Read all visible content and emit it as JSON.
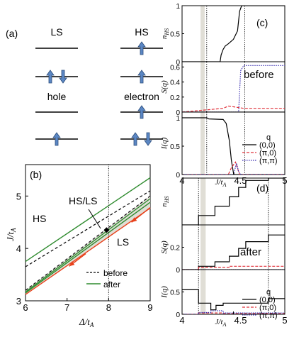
{
  "chart_data": [
    {
      "panel": "(a)",
      "type": "diagram",
      "states": [
        {
          "name": "LS",
          "upper": [],
          "lower": [
            "up",
            "down"
          ]
        },
        {
          "name": "HS",
          "upper": [
            "up"
          ],
          "lower": [
            "up"
          ]
        },
        {
          "name": "hole",
          "upper": [],
          "lower": [
            "up"
          ]
        },
        {
          "name": "electron",
          "upper": [
            "up"
          ],
          "lower": [
            "up",
            "down"
          ]
        }
      ],
      "colors": {
        "arrow": "#5b87c4",
        "arrow_edge": "#2b4c7a"
      }
    },
    {
      "panel": "(b)",
      "type": "line",
      "xlabel": "Δ/t",
      "xlabel_sub": "A",
      "ylabel": "J/t",
      "ylabel_sub": "A",
      "xlim": [
        6,
        9
      ],
      "ylim": [
        3,
        5.6
      ],
      "xticks": [
        "6",
        "7",
        "8",
        "9"
      ],
      "yticks": [
        "3",
        "4",
        "5"
      ],
      "region_labels": [
        "HS",
        "HS/LS",
        "LS"
      ],
      "legend": [
        "before",
        "after"
      ],
      "legend_placement": "bottom-right",
      "vertical_line_x": 8.0,
      "series": [
        {
          "legend_index": 0,
          "style": "dashed",
          "color": "#000000",
          "x": [
            6,
            9
          ],
          "y": [
            3.65,
            5.1
          ]
        },
        {
          "legend_index": 0,
          "style": "dashed",
          "color": "#000000",
          "x": [
            6,
            9
          ],
          "y": [
            3.2,
            5.0
          ]
        },
        {
          "legend_index": 1,
          "style": "solid",
          "color": "#2e8b2e",
          "x": [
            6,
            9
          ],
          "y": [
            3.75,
            5.35
          ]
        },
        {
          "legend_index": 1,
          "style": "solid",
          "color": "#2e8b2e",
          "x": [
            6,
            9
          ],
          "y": [
            3.17,
            4.95
          ]
        },
        {
          "legend_index": 1,
          "style": "solid",
          "color": "#2e8b2e",
          "x": [
            6,
            9
          ],
          "y": [
            3.15,
            4.88
          ]
        },
        {
          "legend_index": -1,
          "style": "solid",
          "color": "#e8401a",
          "x": [
            6,
            9
          ],
          "y": [
            3.12,
            4.77
          ]
        }
      ],
      "band": {
        "x": [
          6,
          9
        ],
        "y_low": [
          3.12,
          4.77
        ],
        "y_high": [
          3.2,
          5.0
        ],
        "color": "#e0ded6"
      },
      "arrows": [
        {
          "x1": 9.0,
          "y1": 4.78,
          "x2": 8.55,
          "y2": 4.5
        },
        {
          "x1": 7.45,
          "y1": 3.9,
          "x2": 7.05,
          "y2": 3.66
        }
      ],
      "marker": {
        "x": 7.95,
        "y": 4.35
      }
    },
    {
      "panel": "(c)",
      "type": "line",
      "annotation": "before",
      "xlim": [
        4,
        5
      ],
      "xticks": [
        "4",
        "4.5",
        "5"
      ],
      "xlabel": "J/t",
      "xlabel_sub": "A",
      "shaded_x": [
        4.18,
        4.22
      ],
      "dotted_x": [
        4.24,
        4.61
      ],
      "subplots": [
        {
          "ylabel": "n",
          "ylabel_sub": "HS",
          "ylim": [
            0,
            1
          ],
          "yticks": [
            "0",
            "0.5",
            "1"
          ],
          "series": [
            {
              "color": "#000000",
              "style": "solid",
              "x": [
                4.0,
                4.24,
                4.25,
                4.37,
                4.38,
                4.4,
                4.42,
                4.45,
                4.5,
                4.54,
                4.56,
                4.58,
                5.0
              ],
              "y": [
                0,
                0,
                0,
                0,
                0.12,
                0.22,
                0.28,
                0.32,
                0.4,
                0.55,
                0.9,
                1.0,
                1.0
              ]
            }
          ]
        },
        {
          "ylabel": "S(q)",
          "ylim": [
            0,
            0.67
          ],
          "yticks": [
            "0",
            "0.2",
            "0.4",
            "0.6"
          ],
          "series": [
            {
              "color": "#000000",
              "style": "solid",
              "x": [
                4.0,
                5.0
              ],
              "y": [
                0.0,
                0.0
              ]
            },
            {
              "color": "#e0303a",
              "style": "dashed",
              "x": [
                4.0,
                4.4,
                4.45,
                4.55,
                4.6,
                5.0
              ],
              "y": [
                0.0,
                0.05,
                0.08,
                0.06,
                0.05,
                0.05
              ]
            },
            {
              "color": "#3a2fb0",
              "style": "dotted",
              "x": [
                4.0,
                4.55,
                4.57,
                4.6,
                5.0
              ],
              "y": [
                0.0,
                0.0,
                0.55,
                0.62,
                0.62
              ]
            }
          ]
        },
        {
          "ylabel": "I(q)",
          "ylim": [
            0,
            1.1
          ],
          "yticks": [
            "0",
            "0.5",
            "1"
          ],
          "series": [
            {
              "color": "#000000",
              "style": "solid",
              "x": [
                4.0,
                4.24,
                4.26,
                4.4,
                4.43,
                4.46,
                4.48,
                4.5,
                4.51,
                4.52,
                4.55,
                5.0
              ],
              "y": [
                1.0,
                1.0,
                0.98,
                0.97,
                0.9,
                0.6,
                0.25,
                0.03,
                0.0,
                0.0,
                0.0,
                0.0
              ]
            },
            {
              "color": "#e0303a",
              "style": "dashed",
              "x": [
                4.0,
                4.45,
                4.48,
                4.52,
                4.56,
                5.0
              ],
              "y": [
                0.0,
                0.0,
                0.12,
                0.22,
                0.0,
                0.0
              ]
            },
            {
              "color": "#3a2fb0",
              "style": "dotted",
              "x": [
                4.0,
                4.5,
                4.53,
                4.55,
                4.57,
                5.0
              ],
              "y": [
                0.0,
                0.0,
                0.2,
                0.05,
                0.0,
                0.0
              ]
            }
          ]
        }
      ],
      "legend": {
        "title": "q",
        "entries": [
          "(0,0)",
          "(π,0)",
          "(π,π)"
        ]
      }
    },
    {
      "panel": "(d)",
      "type": "line",
      "annotation": "after",
      "xlim": [
        4,
        5
      ],
      "xticks": [
        "4",
        "4.5",
        "5"
      ],
      "xlabel": "J/t",
      "xlabel_sub": "A",
      "shaded_x": [
        4.18,
        4.23
      ],
      "dotted_x": [
        4.16,
        4.84
      ],
      "subplots": [
        {
          "ylabel": "n",
          "ylabel_sub": "HS",
          "ylim": [
            0,
            1
          ],
          "yticks": [],
          "series": [
            {
              "color": "#000000",
              "style": "solid",
              "x": [
                4.0,
                4.16,
                4.16,
                4.32,
                4.32,
                4.46,
                4.46,
                4.55,
                4.55,
                4.62,
                4.62,
                4.84,
                4.84,
                5.0
              ],
              "y": [
                0,
                0,
                0.2,
                0.2,
                0.4,
                0.4,
                0.6,
                0.6,
                0.8,
                0.8,
                0.95,
                0.95,
                1.0,
                1.0
              ]
            }
          ]
        },
        {
          "ylabel": "S(q)",
          "ylim": [
            0,
            0.4
          ],
          "yticks": [
            "0",
            "0.2"
          ],
          "series": [
            {
              "color": "#000000",
              "style": "solid",
              "x": [
                4.0,
                4.16,
                4.16,
                4.32,
                4.32,
                4.46,
                4.46,
                4.55,
                4.55,
                4.62,
                4.62,
                4.84,
                4.84,
                5.0
              ],
              "y": [
                0.0,
                0.0,
                0.03,
                0.03,
                0.07,
                0.07,
                0.12,
                0.12,
                0.19,
                0.19,
                0.25,
                0.25,
                0.31,
                0.31
              ]
            },
            {
              "color": "#e0303a",
              "style": "dashed",
              "x": [
                4.0,
                4.16,
                4.16,
                4.46,
                4.46,
                5.0
              ],
              "y": [
                0.0,
                0.0,
                0.02,
                0.02,
                0.03,
                0.03
              ]
            },
            {
              "color": "#3a2fb0",
              "style": "dotted",
              "x": [
                4.0,
                5.0
              ],
              "y": [
                0.0,
                0.0
              ]
            }
          ]
        },
        {
          "ylabel": "I(q)",
          "ylim": [
            0,
            1.0
          ],
          "yticks": [
            "0",
            "0.5"
          ],
          "series": [
            {
              "color": "#000000",
              "style": "solid",
              "x": [
                4.0,
                4.16,
                4.16,
                4.28,
                4.28,
                4.33,
                4.33,
                4.4,
                4.4,
                4.84,
                4.84,
                5.0
              ],
              "y": [
                0.55,
                0.55,
                0.25,
                0.25,
                0.1,
                0.1,
                0.2,
                0.2,
                0.25,
                0.25,
                0.35,
                0.35
              ]
            },
            {
              "color": "#e0303a",
              "style": "dashed",
              "x": [
                4.0,
                4.16,
                4.16,
                4.4,
                4.4,
                5.0
              ],
              "y": [
                0.0,
                0.0,
                0.03,
                0.03,
                0.02,
                0.02
              ]
            },
            {
              "color": "#3a2fb0",
              "style": "dotted",
              "x": [
                4.0,
                4.16,
                4.16,
                4.28,
                4.28,
                4.4,
                4.4,
                5.0
              ],
              "y": [
                0.0,
                0.0,
                0.04,
                0.04,
                0.08,
                0.08,
                0.03,
                0.03
              ]
            }
          ]
        }
      ],
      "legend": {
        "title": "q",
        "entries": [
          "(0,0)",
          "(π,0)",
          "(π,π)"
        ]
      }
    }
  ]
}
